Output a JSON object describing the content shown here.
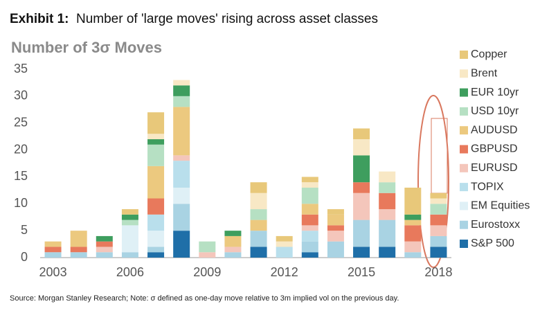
{
  "chart_data": {
    "type": "stacked_bar",
    "title_label": "Exhibit 1:",
    "title": "Number of 'large moves' rising across asset classes",
    "subtitle": "Number of 3σ Moves",
    "source": "Source: Morgan Stanley Research; Note: σ defined as one-day move relative to 3m implied vol on the previous day.",
    "categories": [
      "2003",
      null,
      null,
      "2006",
      null,
      null,
      "2009",
      null,
      null,
      "2012",
      null,
      null,
      "2015",
      null,
      null,
      "2018"
    ],
    "ylim": [
      0,
      35
    ],
    "yticks": [
      0,
      5,
      10,
      15,
      20,
      25,
      30,
      35
    ],
    "grid": false,
    "legend": "right",
    "series": [
      {
        "name": "S&P 500",
        "color": "#1f6fa8",
        "values": [
          0,
          0,
          0,
          0,
          1,
          5,
          0,
          0,
          2,
          0,
          1,
          0,
          2,
          2,
          0,
          2
        ]
      },
      {
        "name": "Eurostoxx",
        "color": "#a9d3e3",
        "values": [
          1,
          1,
          1,
          1,
          1,
          5,
          0,
          1,
          3,
          0,
          2,
          3,
          5,
          5,
          1,
          2
        ]
      },
      {
        "name": "EM Equities",
        "color": "#dff0f6",
        "values": [
          0,
          0,
          0,
          5,
          3,
          3,
          0,
          0,
          0,
          0,
          0,
          0,
          0,
          0,
          0,
          0
        ]
      },
      {
        "name": "TOPIX",
        "color": "#b9dfec",
        "values": [
          0,
          0,
          0,
          0,
          3,
          5,
          0,
          0,
          0,
          2,
          2,
          0,
          0,
          0,
          0,
          0
        ]
      },
      {
        "name": "EURUSD",
        "color": "#f4c6bb",
        "values": [
          0,
          0,
          1,
          0,
          0,
          1,
          1,
          1,
          0,
          0,
          1,
          2,
          5,
          2,
          2,
          2
        ]
      },
      {
        "name": "GBPUSD",
        "color": "#e8795c",
        "values": [
          1,
          1,
          1,
          0,
          3,
          0,
          0,
          0,
          0,
          0,
          2,
          1,
          2,
          3,
          3,
          2
        ]
      },
      {
        "name": "AUDUSD",
        "color": "#ecc97f",
        "values": [
          1,
          3,
          0,
          0,
          6,
          9,
          0,
          2,
          2,
          0,
          2,
          2,
          0,
          0,
          1,
          0
        ]
      },
      {
        "name": "USD 10yr",
        "color": "#b6e0c3",
        "values": [
          0,
          0,
          0,
          1,
          4,
          2,
          2,
          0,
          2,
          0,
          3,
          0,
          0,
          2,
          0,
          2
        ]
      },
      {
        "name": "EUR 10yr",
        "color": "#3e9e5e",
        "values": [
          0,
          0,
          1,
          1,
          1,
          2,
          0,
          1,
          0,
          0,
          0,
          0,
          5,
          0,
          1,
          0
        ]
      },
      {
        "name": "Brent",
        "color": "#f8e8c5",
        "values": [
          0,
          0,
          0,
          0,
          1,
          1,
          0,
          0,
          3,
          1,
          1,
          0,
          3,
          2,
          0,
          1
        ]
      },
      {
        "name": "Copper",
        "color": "#e8c87a",
        "values": [
          0,
          0,
          0,
          1,
          4,
          0,
          0,
          0,
          2,
          1,
          1,
          1,
          2,
          0,
          5,
          1
        ]
      }
    ]
  }
}
